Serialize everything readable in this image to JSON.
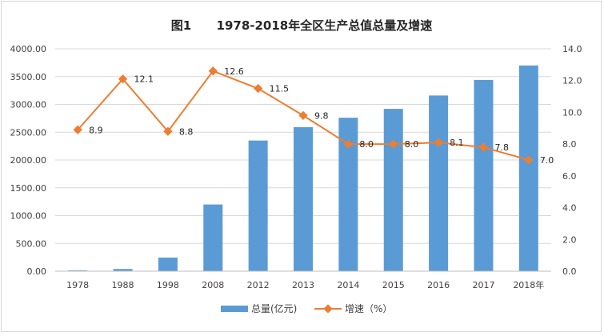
{
  "chart_data": {
    "type": "bar",
    "title": "图1      1978-2018年全区生产总值总量及增速",
    "categories": [
      "1978",
      "1988",
      "1998",
      "2008",
      "2012",
      "2013",
      "2014",
      "2015",
      "2016",
      "2017",
      "2018年"
    ],
    "series": [
      {
        "name": "总量(亿元)",
        "type": "bar",
        "axis": "left",
        "color": "#5b9bd5",
        "values": [
          15,
          40,
          245,
          1200,
          2350,
          2590,
          2760,
          2920,
          3160,
          3440,
          3700
        ]
      },
      {
        "name": "增速（%）",
        "type": "line",
        "axis": "right",
        "color": "#ed7d31",
        "values": [
          8.9,
          12.1,
          8.8,
          12.6,
          11.5,
          9.8,
          8.0,
          8.0,
          8.1,
          7.8,
          7.0
        ],
        "labels": [
          "8.9",
          "12.1",
          "8.8",
          "12.6",
          "11.5",
          "9.8",
          "8.0",
          "8.0",
          "8.1",
          "7.8",
          "7.0"
        ]
      }
    ],
    "y_left": {
      "min": 0,
      "max": 4000,
      "ticks": [
        "0.00",
        "500.00",
        "1000.00",
        "1500.00",
        "2000.00",
        "2500.00",
        "3000.00",
        "3500.00",
        "4000.00"
      ]
    },
    "y_right": {
      "min": 0,
      "max": 14,
      "ticks": [
        "0.0",
        "2.0",
        "4.0",
        "6.0",
        "8.0",
        "10.0",
        "12.0",
        "14.0"
      ]
    },
    "grid": true,
    "legend_position": "bottom"
  }
}
